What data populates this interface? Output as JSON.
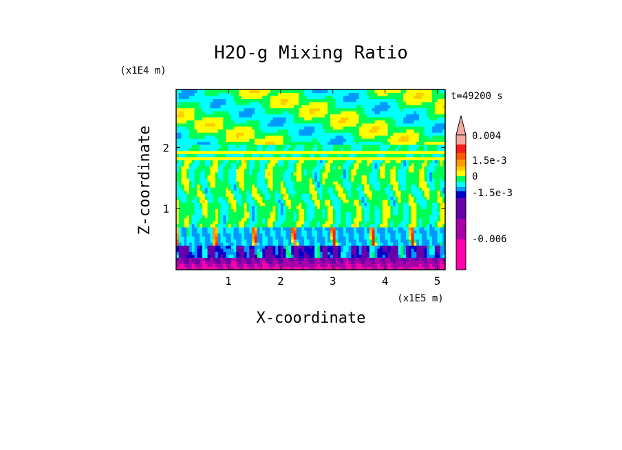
{
  "chart_data": {
    "type": "heatmap",
    "title": "H2O-g Mixing Ratio",
    "xlabel": "X-coordinate",
    "ylabel": "Z-coordinate",
    "x_unit": "(x1E5 m)",
    "y_unit": "(x1E4 m)",
    "time_label": "t=49200 s",
    "xlim": [
      0,
      5.15
    ],
    "ylim": [
      0,
      2.95
    ],
    "xticks": [
      1,
      2,
      3,
      4,
      5
    ],
    "yticks": [
      1,
      2
    ],
    "colorbar": {
      "levels": [
        {
          "value": 0.004,
          "color": "#f4a8a0"
        },
        {
          "value": 0.003,
          "color": "#f08878"
        },
        {
          "value": 0.0025,
          "color": "#ff1a1a"
        },
        {
          "value": 0.002,
          "color": "#ff5a00"
        },
        {
          "value": 0.0015,
          "color": "#ff9900"
        },
        {
          "value": 0.001,
          "color": "#ffcc00"
        },
        {
          "value": 0.0005,
          "color": "#ffff00"
        },
        {
          "value": 0,
          "color": "#00ff55"
        },
        {
          "value": -0.0005,
          "color": "#00ffff"
        },
        {
          "value": -0.001,
          "color": "#0099ff"
        },
        {
          "value": -0.0015,
          "color": "#0000cc"
        },
        {
          "value": -0.003,
          "color": "#6600aa"
        },
        {
          "value": -0.0045,
          "color": "#aa00aa"
        },
        {
          "value": -0.006,
          "color": "#ff00aa"
        }
      ],
      "labels": [
        "0.004",
        "1.5e-3",
        "0",
        "-1.5e-3",
        "-0.006"
      ]
    }
  }
}
